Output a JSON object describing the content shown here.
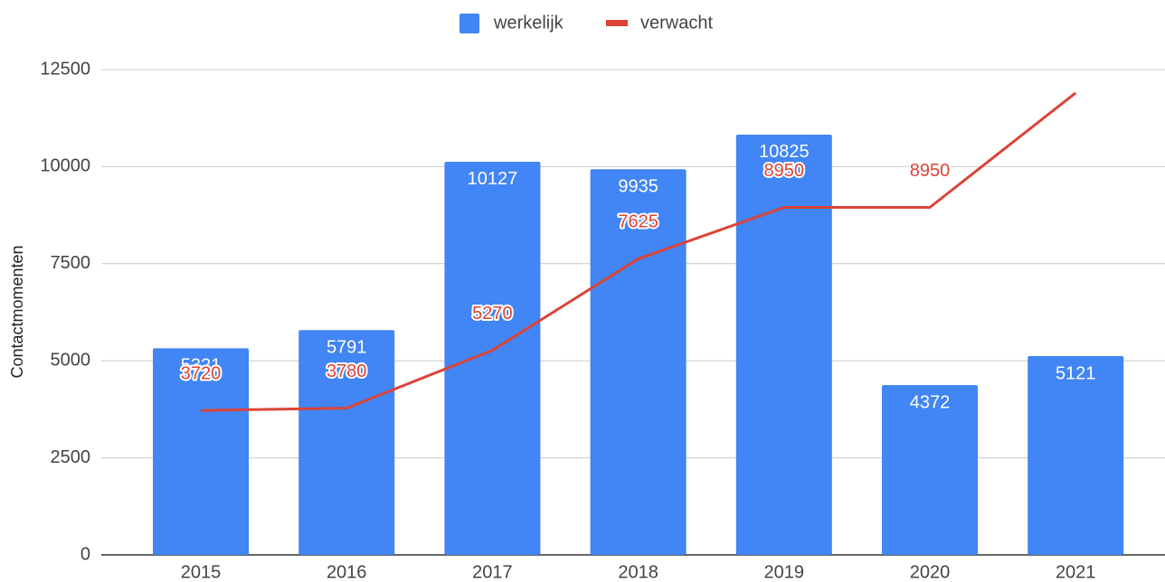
{
  "chart_data": {
    "type": "bar-line",
    "y_label": "Contactmomenten",
    "categories": [
      "2015",
      "2016",
      "2017",
      "2018",
      "2019",
      "2020",
      "2021"
    ],
    "series": [
      {
        "name": "werkelijk",
        "type": "bar",
        "color": "#4285f4",
        "values": [
          5321,
          5791,
          10127,
          9935,
          10825,
          4372,
          5121
        ]
      },
      {
        "name": "verwacht",
        "type": "line",
        "color": "#db4437",
        "values": [
          3720,
          3780,
          5270,
          7625,
          8950,
          8950,
          11900
        ],
        "value_labels": [
          "3720",
          "3780",
          "5270",
          "7625",
          "8950",
          "8950",
          null
        ]
      }
    ],
    "ylim": [
      0,
      12500
    ],
    "yticks": [
      0,
      2500,
      5000,
      7500,
      10000,
      12500
    ],
    "grid": true,
    "legend": "top"
  }
}
